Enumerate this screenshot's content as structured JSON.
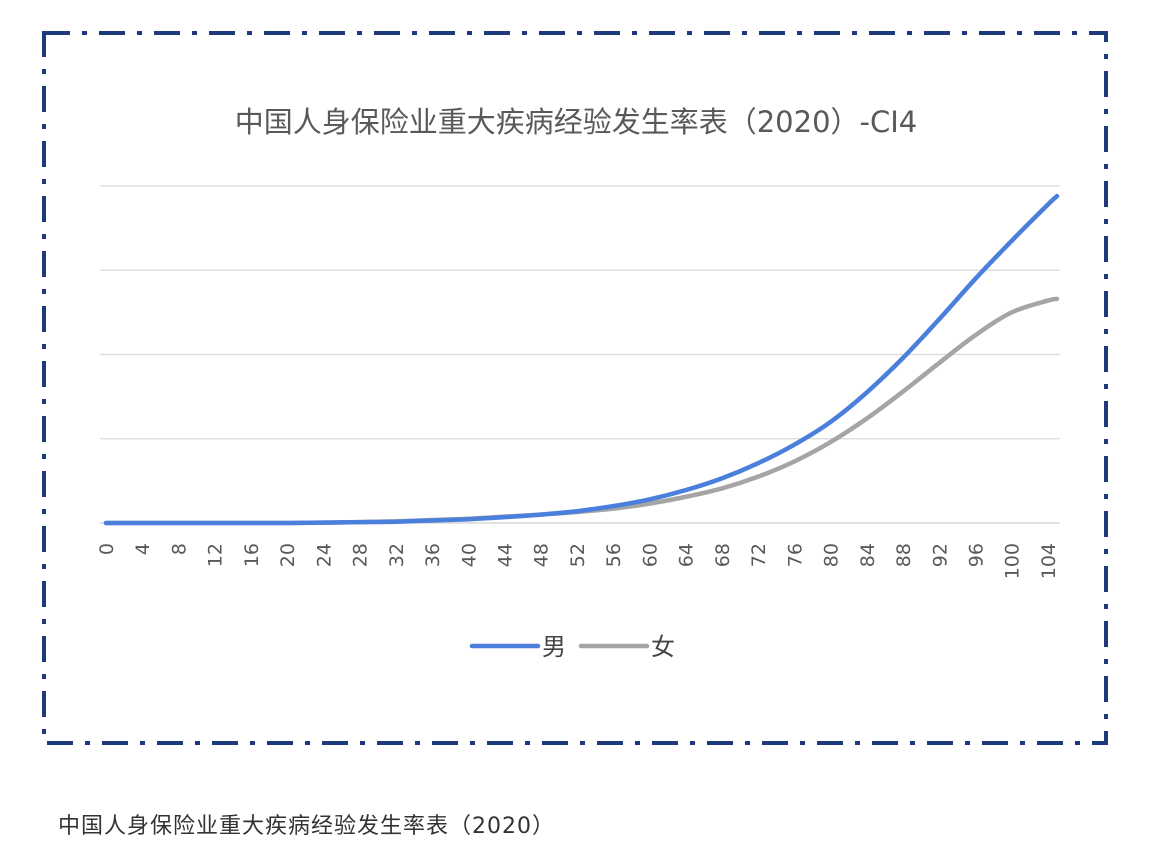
{
  "chart_data": {
    "type": "line",
    "title": "中国人身保险业重大疾病经验发生率表（2020）-CI4",
    "x_ticks": [
      "0",
      "4",
      "8",
      "12",
      "16",
      "20",
      "24",
      "28",
      "32",
      "36",
      "40",
      "44",
      "48",
      "52",
      "56",
      "60",
      "64",
      "68",
      "72",
      "76",
      "80",
      "84",
      "88",
      "92",
      "96",
      "100",
      "104"
    ],
    "x": [
      0,
      4,
      8,
      12,
      16,
      20,
      24,
      28,
      32,
      36,
      40,
      44,
      48,
      52,
      56,
      60,
      64,
      68,
      72,
      76,
      80,
      84,
      88,
      92,
      96,
      100,
      104,
      105
    ],
    "ylim": [
      0,
      4
    ],
    "grid": true,
    "legend_position": "bottom",
    "series": [
      {
        "name": "男",
        "color": "#4a7fdb",
        "values": [
          0.0,
          0.0,
          0.0,
          0.0,
          0.0,
          0.0,
          0.005,
          0.01,
          0.015,
          0.03,
          0.045,
          0.07,
          0.1,
          0.14,
          0.2,
          0.28,
          0.39,
          0.53,
          0.71,
          0.93,
          1.2,
          1.55,
          1.96,
          2.42,
          2.9,
          3.35,
          3.78,
          3.88
        ]
      },
      {
        "name": "女",
        "color": "#a5a5a5",
        "values": [
          0.0,
          0.0,
          0.0,
          0.0,
          0.0,
          0.0,
          0.005,
          0.01,
          0.02,
          0.035,
          0.05,
          0.075,
          0.1,
          0.13,
          0.17,
          0.23,
          0.31,
          0.41,
          0.55,
          0.73,
          0.96,
          1.24,
          1.56,
          1.9,
          2.23,
          2.5,
          2.64,
          2.66
        ]
      }
    ]
  },
  "caption": "中国人身保险业重大疾病经验发生率表（2020）",
  "frame_color": "#1d3a7a"
}
